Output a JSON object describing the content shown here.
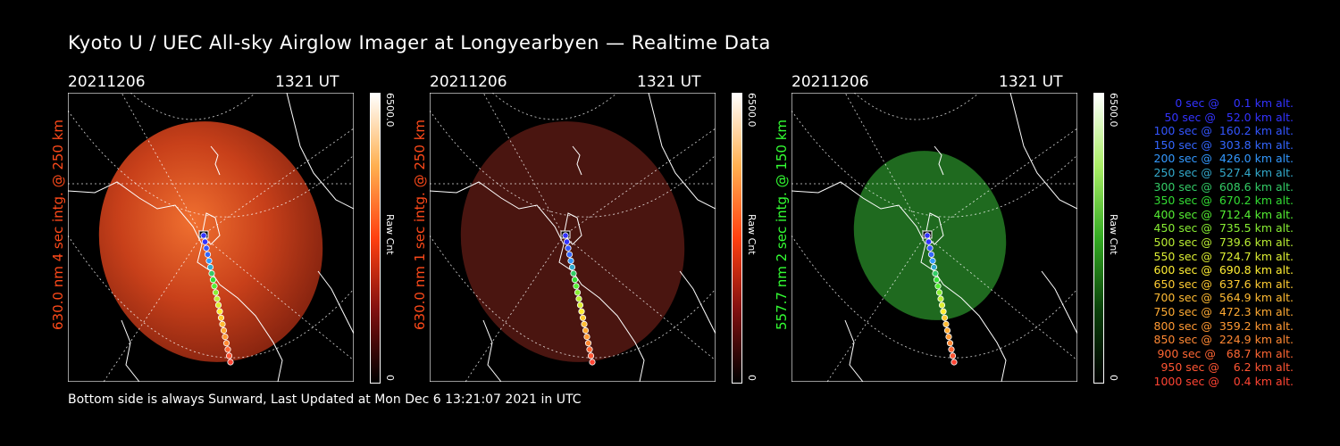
{
  "title": "Kyoto U / UEC All-sky Airglow Imager at Longyearbyen — Realtime Data",
  "footer": "Bottom side is always Sunward, Last Updated at Mon Dec  6 13:21:07 2021 in UTC",
  "panels": [
    {
      "date": "20211206",
      "ut": "1321 UT",
      "side_label": "630.0 nm 4 sec intg. @ 250 km",
      "cb_max": "6500.0",
      "cb_unit": "Raw Cnt",
      "cb_min": "0",
      "color": "#ff4a1a",
      "glow": "#e8451a"
    },
    {
      "date": "20211206",
      "ut": "1321 UT",
      "side_label": "630.0 nm 1 sec intg. @ 250 km",
      "cb_max": "6500.0",
      "cb_unit": "Raw Cnt",
      "cb_min": "0",
      "color": "#ff4a1a",
      "glow": "#5a1a10"
    },
    {
      "date": "20211206",
      "ut": "1321 UT",
      "side_label": "557.7 nm 2 sec intg. @ 150 km",
      "cb_max": "6500.0",
      "cb_unit": "Raw Cnt",
      "cb_min": "0",
      "color": "#33ff33",
      "glow": "#1f6a1f"
    }
  ],
  "legend": [
    {
      "text": "0 sec @    0.1 km alt.",
      "color": "#3333ff"
    },
    {
      "text": "50 sec @   52.0 km alt.",
      "color": "#3333ff"
    },
    {
      "text": "100 sec @  160.2 km alt.",
      "color": "#3355ff"
    },
    {
      "text": "150 sec @  303.8 km alt.",
      "color": "#3366ff"
    },
    {
      "text": "200 sec @  426.0 km alt.",
      "color": "#3399ff"
    },
    {
      "text": "250 sec @  527.4 km alt.",
      "color": "#33aacc"
    },
    {
      "text": "300 sec @  608.6 km alt.",
      "color": "#33cc66"
    },
    {
      "text": "350 sec @  670.2 km alt.",
      "color": "#33dd33"
    },
    {
      "text": "400 sec @  712.4 km alt.",
      "color": "#55ee33"
    },
    {
      "text": "450 sec @  735.5 km alt.",
      "color": "#88ee33"
    },
    {
      "text": "500 sec @  739.6 km alt.",
      "color": "#bbee33"
    },
    {
      "text": "550 sec @  724.7 km alt.",
      "color": "#ddee33"
    },
    {
      "text": "600 sec @  690.8 km alt.",
      "color": "#ffee33"
    },
    {
      "text": "650 sec @  637.6 km alt.",
      "color": "#ffcc33"
    },
    {
      "text": "700 sec @  564.9 km alt.",
      "color": "#ffbb33"
    },
    {
      "text": "750 sec @  472.3 km alt.",
      "color": "#ffaa33"
    },
    {
      "text": "800 sec @  359.2 km alt.",
      "color": "#ff9933"
    },
    {
      "text": "850 sec @  224.9 km alt.",
      "color": "#ff8833"
    },
    {
      "text": "900 sec @   68.7 km alt.",
      "color": "#ff6633"
    },
    {
      "text": "950 sec @    6.2 km alt.",
      "color": "#ff5533"
    },
    {
      "text": "1000 sec @    0.4 km alt.",
      "color": "#ff4433"
    }
  ]
}
